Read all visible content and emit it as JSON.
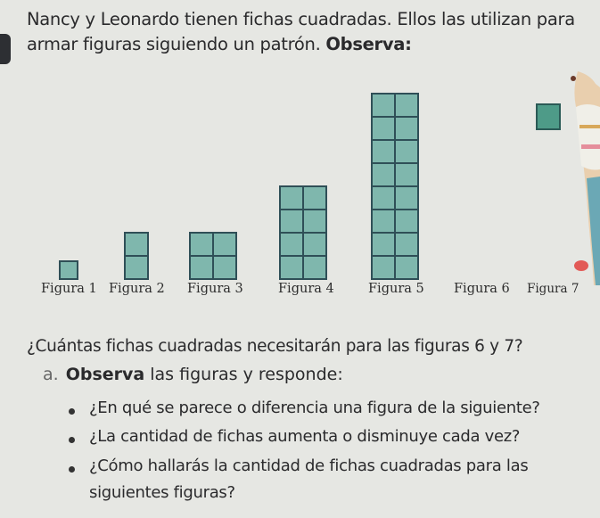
{
  "intro": {
    "line1": "Nancy y Leonardo tienen fichas cuadradas. Ellos las utilizan para",
    "line2_start": "armar figuras siguiendo un patrón. ",
    "line2_bold": "Observa:"
  },
  "figures": [
    {
      "label": "Figura 1",
      "rows": 1,
      "cols": 1
    },
    {
      "label": "Figura 2",
      "rows": 2,
      "cols": 1
    },
    {
      "label": "Figura 3",
      "rows": 2,
      "cols": 2
    },
    {
      "label": "Figura 4",
      "rows": 4,
      "cols": 2
    },
    {
      "label": "Figura 5",
      "rows": 8,
      "cols": 2
    },
    {
      "label": "Figura 6"
    },
    {
      "label": "Figura 7"
    }
  ],
  "question": "¿Cuántas fichas cuadradas necesitarán para las figuras 6 y 7?",
  "part_a": {
    "letter": "a.",
    "bold": "Observa",
    "rest": " las figuras y responde:"
  },
  "bullets": [
    "¿En qué se parece o diferencia una figura de la siguiente?",
    "¿La cantidad de fichas aumenta o disminuye cada vez?",
    "¿Cómo hallarás la cantidad de fichas cuadradas para las",
    "siguientes figuras?"
  ],
  "colors": {
    "tile_fill": "#7fb7ad",
    "tile_border": "#2f4f57",
    "page_bg": "#e6e7e3"
  }
}
